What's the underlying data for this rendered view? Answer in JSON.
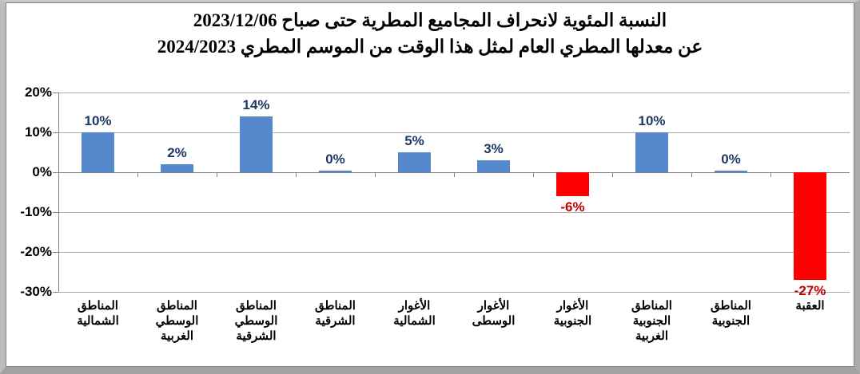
{
  "title": {
    "line1": "النسبة المئوية لانحراف المجاميع المطرية حتى صباح 2023/12/06",
    "line2": "عن معدلها المطري العام لمثل هذا الوقت من الموسم المطري 2024/2023"
  },
  "chart_data": {
    "type": "bar",
    "title": "النسبة المئوية لانحراف المجاميع المطرية حتى صباح 2023/12/06 عن معدلها المطري العام لمثل هذا الوقت من الموسم المطري 2024/2023",
    "categories": [
      "المناطق الشمالية",
      "المناطق الوسطي الغربية",
      "المناطق الوسطي الشرقية",
      "المناطق الشرقية",
      "الأغوار الشمالية",
      "الأغوار الوسطى",
      "الأغوار الجنوبية",
      "المناطق الجنوبية الغربية",
      "المناطق الجنوبية",
      "العقبة"
    ],
    "values": [
      10,
      2,
      14,
      0,
      5,
      3,
      -6,
      10,
      0,
      -27
    ],
    "value_labels": [
      "10%",
      "2%",
      "14%",
      "0%",
      "5%",
      "3%",
      "-6%",
      "10%",
      "0%",
      "-27%"
    ],
    "y_ticks": [
      {
        "value": 20,
        "label": "20%"
      },
      {
        "value": 10,
        "label": "10%"
      },
      {
        "value": 0,
        "label": "0%"
      },
      {
        "value": -10,
        "label": "-10%"
      },
      {
        "value": -20,
        "label": "-20%"
      },
      {
        "value": -30,
        "label": "-30%"
      }
    ],
    "ylim": [
      -30,
      20
    ],
    "xlabel": "",
    "ylabel": "",
    "grid": true,
    "legend": "none",
    "colors": {
      "positive_bar": "#5688CD",
      "negative_bar": "#FF0000",
      "positive_label": "#1F3864",
      "negative_label": "#C00000",
      "gridline": "#ABABAB",
      "axis": "#808080",
      "title_text": "#000000"
    }
  }
}
